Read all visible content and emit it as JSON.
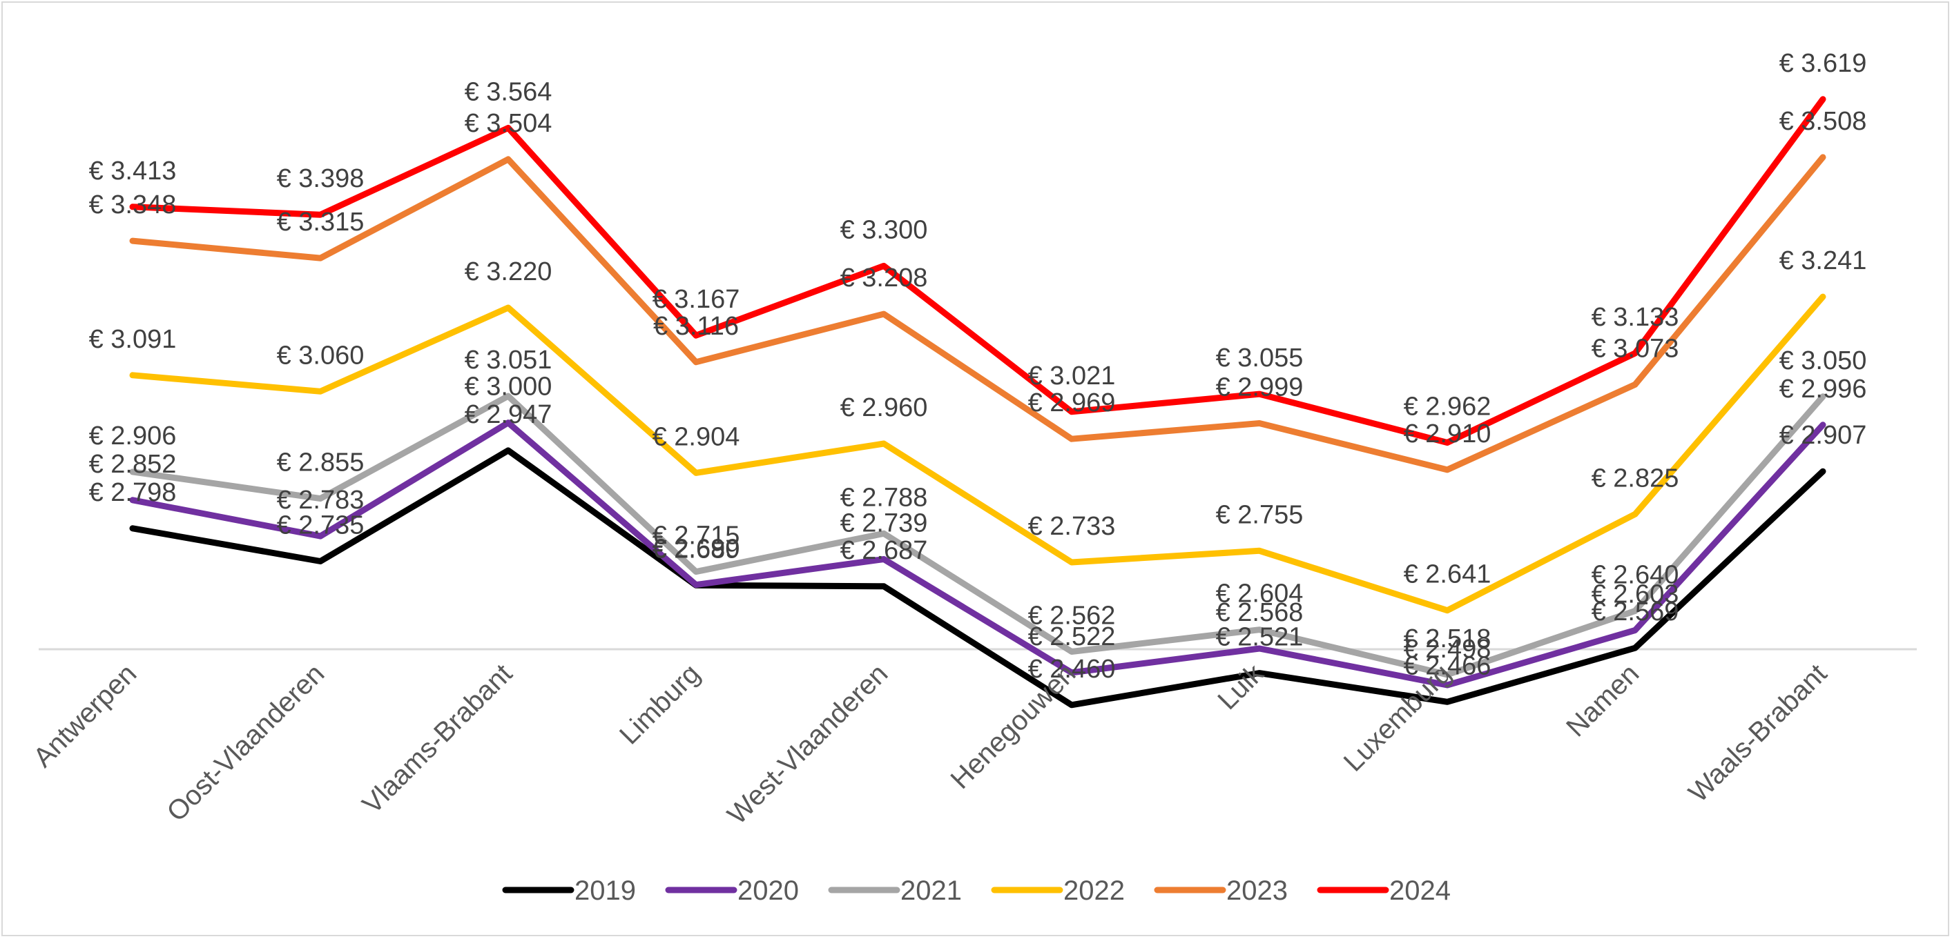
{
  "chart_data": {
    "type": "line",
    "title": "",
    "xlabel": "",
    "ylabel": "",
    "categories": [
      "Antwerpen",
      "Oost-Vlaanderen",
      "Vlaams-Brabant",
      "Limburg",
      "West-Vlaanderen",
      "Henegouwen",
      "Luik",
      "Luxemburg",
      "Namen",
      "Waals-Brabant"
    ],
    "series": [
      {
        "name": "2019",
        "color": "#000000",
        "values": [
          2798,
          2735,
          2947,
          2689,
          2687,
          2460,
          2521,
          2466,
          2569,
          2907
        ],
        "labels": [
          "€ 2.798",
          "€ 2.735",
          "€ 2.947",
          "€ 2.689",
          "€ 2.687",
          "€ 2.460",
          "€ 2.521",
          "€ 2.466",
          "€ 2.569",
          "€ 2.907"
        ]
      },
      {
        "name": "2020",
        "color": "#7030a0",
        "values": [
          2852,
          2783,
          3000,
          2690,
          2739,
          2522,
          2568,
          2498,
          2603,
          2996
        ],
        "labels": [
          "€ 2.852",
          "€ 2.783",
          "€ 3.000",
          "€ 2.690",
          "€ 2.739",
          "€ 2.522",
          "€ 2.568",
          "€ 2.498",
          "€ 2.603",
          "€ 2.996"
        ]
      },
      {
        "name": "2021",
        "color": "#a5a5a5",
        "values": [
          2906,
          2855,
          3051,
          2715,
          2788,
          2562,
          2604,
          2518,
          2640,
          3050
        ],
        "labels": [
          "€ 2.906",
          "€ 2.855",
          "€ 3.051",
          "€ 2.715",
          "€ 2.788",
          "€ 2.562",
          "€ 2.604",
          "€ 2.518",
          "€ 2.640",
          "€ 3.050"
        ]
      },
      {
        "name": "2022",
        "color": "#ffc000",
        "values": [
          3091,
          3060,
          3220,
          2904,
          2960,
          2733,
          2755,
          2641,
          2825,
          3241
        ],
        "labels": [
          "€ 3.091",
          "€ 3.060",
          "€ 3.220",
          "€ 2.904",
          "€ 2.960",
          "€ 2.733",
          "€ 2.755",
          "€ 2.641",
          "€ 2.825",
          "€ 3.241"
        ]
      },
      {
        "name": "2023",
        "color": "#ed7d31",
        "values": [
          3348,
          3315,
          3504,
          3116,
          3208,
          2969,
          2999,
          2910,
          3073,
          3508
        ],
        "labels": [
          "€ 3.348",
          "€ 3.315",
          "€ 3.504",
          "€ 3.116",
          "€ 3.208",
          "€ 2.969",
          "€ 2.999",
          "€ 2.910",
          "€ 3.073",
          "€ 3.508"
        ]
      },
      {
        "name": "2024",
        "color": "#ff0000",
        "values": [
          3413,
          3398,
          3564,
          3167,
          3300,
          3021,
          3055,
          2962,
          3133,
          3619
        ],
        "labels": [
          "€ 3.413",
          "€ 3.398",
          "€ 3.564",
          "€ 3.167",
          "€ 3.300",
          "€ 3.021",
          "€ 3.055",
          "€ 2.962",
          "€ 3.133",
          "€ 3.619"
        ]
      }
    ],
    "grid": false,
    "legend_position": "bottom",
    "data_labels": true
  }
}
